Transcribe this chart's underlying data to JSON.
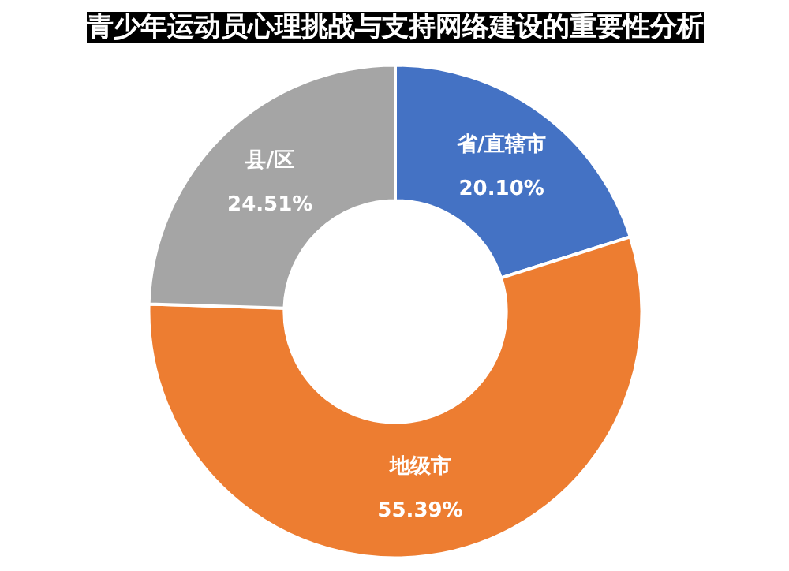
{
  "chart_data": {
    "type": "donut",
    "title": "青少年运动员心理挑战与支持网络建设的重要性分析",
    "categories": [
      "省/直辖市",
      "地级市",
      "县/区"
    ],
    "values": [
      20.1,
      55.39,
      24.51
    ],
    "value_labels": [
      "20.10%",
      "55.39%",
      "24.51%"
    ],
    "colors": [
      "#4472c4",
      "#ed7d31",
      "#a5a5a5"
    ]
  }
}
